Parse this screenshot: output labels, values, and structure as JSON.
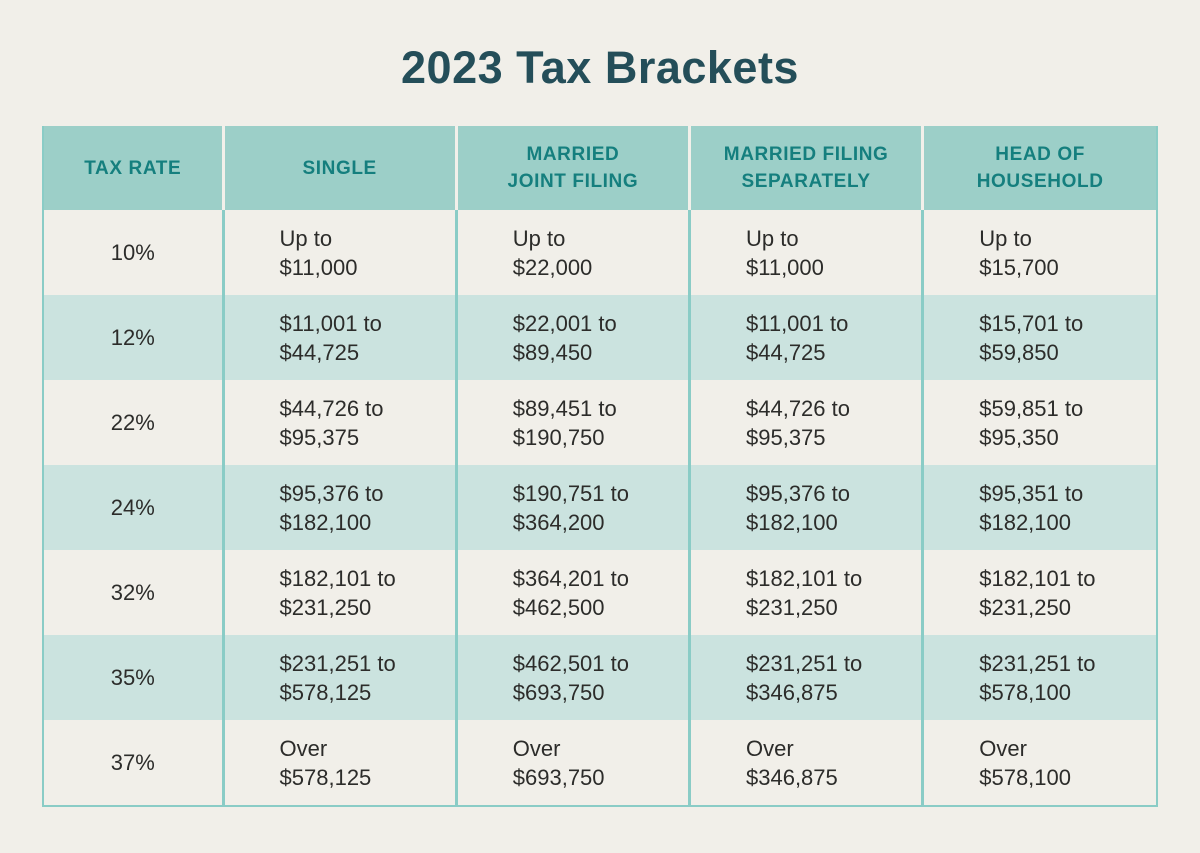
{
  "chart_data": {
    "type": "table",
    "title": "2023 Tax Brackets",
    "columns": [
      "TAX RATE",
      "SINGLE",
      "MARRIED JOINT FILING",
      "MARRIED FILING SEPARATELY",
      "HEAD OF HOUSEHOLD"
    ],
    "header_lines": [
      [
        "TAX RATE"
      ],
      [
        "SINGLE"
      ],
      [
        "MARRIED",
        "JOINT FILING"
      ],
      [
        "MARRIED FILING",
        "SEPARATELY"
      ],
      [
        "HEAD OF",
        "HOUSEHOLD"
      ]
    ],
    "rows": [
      {
        "rate": "10%",
        "cells": [
          [
            "Up to",
            "$11,000"
          ],
          [
            "Up to",
            "$22,000"
          ],
          [
            "Up to",
            "$11,000"
          ],
          [
            "Up to",
            "$15,700"
          ]
        ]
      },
      {
        "rate": "12%",
        "cells": [
          [
            "$11,001 to",
            "$44,725"
          ],
          [
            "$22,001 to",
            "$89,450"
          ],
          [
            "$11,001 to",
            "$44,725"
          ],
          [
            "$15,701 to",
            "$59,850"
          ]
        ]
      },
      {
        "rate": "22%",
        "cells": [
          [
            "$44,726 to",
            "$95,375"
          ],
          [
            "$89,451 to",
            "$190,750"
          ],
          [
            "$44,726 to",
            "$95,375"
          ],
          [
            "$59,851 to",
            "$95,350"
          ]
        ]
      },
      {
        "rate": "24%",
        "cells": [
          [
            "$95,376 to",
            "$182,100"
          ],
          [
            "$190,751 to",
            "$364,200"
          ],
          [
            "$95,376 to",
            "$182,100"
          ],
          [
            "$95,351 to",
            "$182,100"
          ]
        ]
      },
      {
        "rate": "32%",
        "cells": [
          [
            "$182,101 to",
            "$231,250"
          ],
          [
            "$364,201 to",
            "$462,500"
          ],
          [
            "$182,101 to",
            "$231,250"
          ],
          [
            "$182,101 to",
            "$231,250"
          ]
        ]
      },
      {
        "rate": "35%",
        "cells": [
          [
            "$231,251 to",
            "$578,125"
          ],
          [
            "$462,501 to",
            "$693,750"
          ],
          [
            "$231,251 to",
            "$346,875"
          ],
          [
            "$231,251 to",
            "$578,100"
          ]
        ]
      },
      {
        "rate": "37%",
        "cells": [
          [
            "Over",
            "$578,125"
          ],
          [
            "Over",
            "$693,750"
          ],
          [
            "Over",
            "$346,875"
          ],
          [
            "Over",
            "$578,100"
          ]
        ]
      }
    ],
    "layout": {
      "legend": "none",
      "grid": "column-dividers-only",
      "row_striping": "alternating"
    }
  },
  "colors": {
    "page_bg": "#f1efe9",
    "title_text": "#244e59",
    "header_bg": "#9ccfc8",
    "header_text": "#157f7e",
    "row_bg": "#f1efe9",
    "row_alt_bg": "#cbe3df",
    "cell_text": "#2c2c2a",
    "divider": "#8accc6"
  }
}
